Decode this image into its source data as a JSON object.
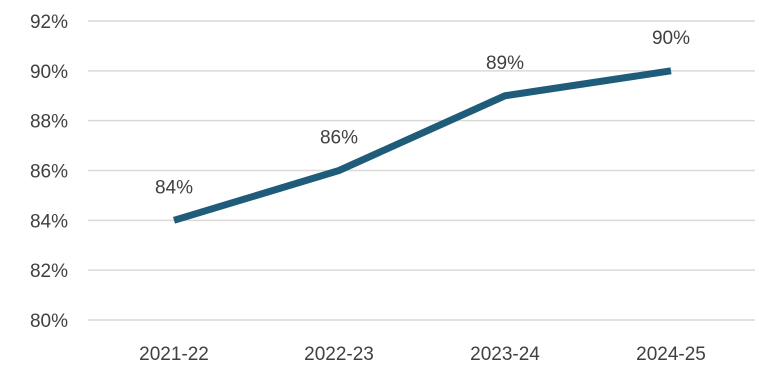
{
  "chart_data": {
    "type": "line",
    "title": "",
    "xlabel": "",
    "ylabel": "",
    "categories": [
      "2021-22",
      "2022-23",
      "2023-24",
      "2024-25"
    ],
    "series": [
      {
        "values": [
          84,
          86,
          89,
          90
        ],
        "data_labels": [
          "84%",
          "86%",
          "89%",
          "90%"
        ],
        "color": "#1f5c7a"
      }
    ],
    "ylim": [
      80,
      92
    ],
    "y_ticks": [
      80,
      82,
      84,
      86,
      88,
      90,
      92
    ],
    "y_tick_labels": [
      "80%",
      "82%",
      "84%",
      "86%",
      "88%",
      "90%",
      "92%"
    ],
    "grid": true,
    "legend": "none"
  }
}
